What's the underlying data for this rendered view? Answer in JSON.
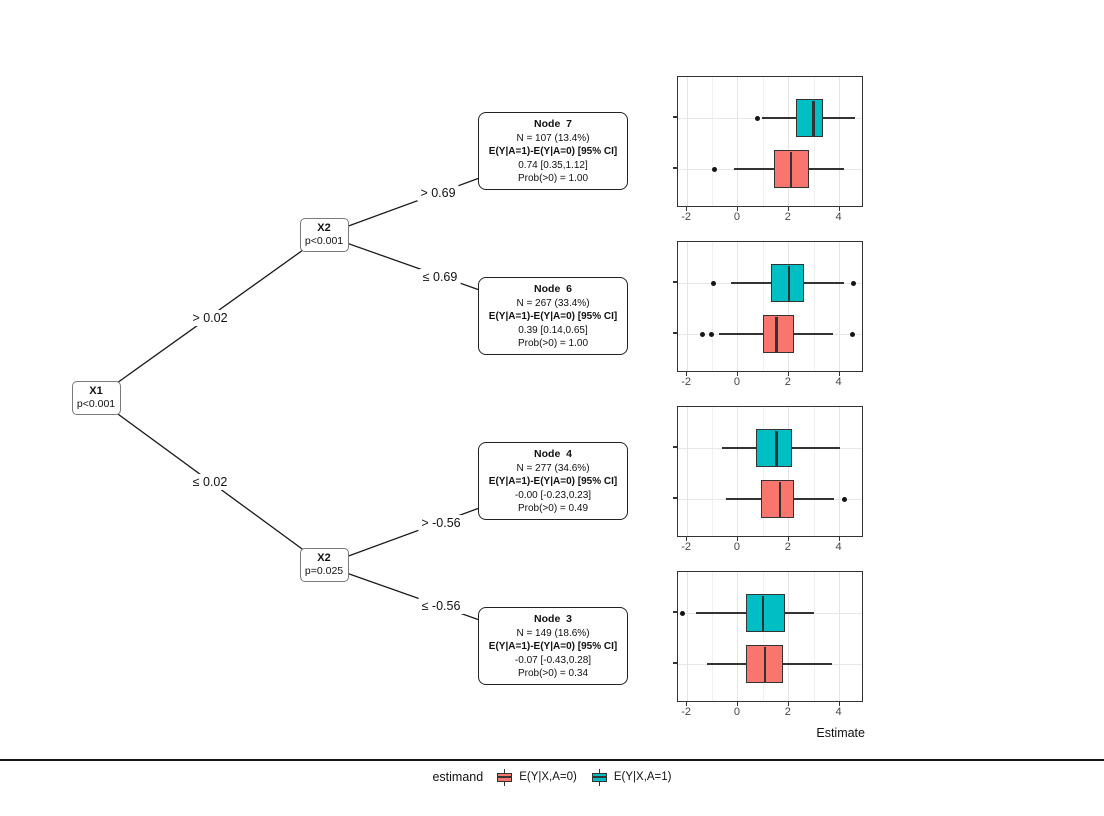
{
  "tree": {
    "nodes": [
      {
        "label": "X1",
        "pvalue": "p<0.001"
      },
      {
        "label": "X2",
        "pvalue": "p<0.001"
      },
      {
        "label": "X2",
        "pvalue": "p=0.025"
      }
    ],
    "edge_labels": [
      "> 0.02",
      "≤ 0.02",
      "> 0.69",
      "≤ 0.69",
      "> -0.56",
      "≤ -0.56"
    ],
    "terminal_nodes": [
      {
        "title": "Node  7",
        "n": "N = 107 (13.4%)",
        "ci_header": "E(Y|A=1)-E(Y|A=0) [95% CI]",
        "estimate": "0.74 [0.35,1.12]",
        "prob": "Prob(>0) = 1.00"
      },
      {
        "title": "Node  6",
        "n": "N = 267 (33.4%)",
        "ci_header": "E(Y|A=1)-E(Y|A=0) [95% CI]",
        "estimate": "0.39 [0.14,0.65]",
        "prob": "Prob(>0) = 1.00"
      },
      {
        "title": "Node  4",
        "n": "N = 277 (34.6%)",
        "ci_header": "E(Y|A=1)-E(Y|A=0) [95% CI]",
        "estimate": "-0.00 [-0.23,0.23]",
        "prob": "Prob(>0) = 0.49"
      },
      {
        "title": "Node  3",
        "n": "N = 149 (18.6%)",
        "ci_header": "E(Y|A=1)-E(Y|A=0) [95% CI]",
        "estimate": "-0.07 [-0.43,0.28]",
        "prob": "Prob(>0) = 0.34"
      }
    ]
  },
  "chart_data": {
    "type": "boxplot",
    "xlabel": "Estimate",
    "x_ticks": [
      -2,
      0,
      2,
      4
    ],
    "x_minor": [
      -1,
      1,
      3
    ],
    "x_domain": [
      -2.36,
      4.96
    ],
    "grid": "on",
    "legend": {
      "title": "estimand",
      "position": "bottom",
      "items": [
        {
          "label": "E(Y|X,A=0)",
          "color": "#F8766D"
        },
        {
          "label": "E(Y|X,A=1)",
          "color": "#00BFC4"
        }
      ]
    },
    "panels": [
      {
        "node": "Node 7",
        "boxes": [
          {
            "series": "E(Y|X,A=1)",
            "color": "#00BFC4",
            "whisker_lo": 0.95,
            "q1": 2.28,
            "median": 2.98,
            "q3": 3.33,
            "whisker_hi": 4.6,
            "outliers": [
              0.78
            ]
          },
          {
            "series": "E(Y|X,A=0)",
            "color": "#F8766D",
            "whisker_lo": -0.15,
            "q1": 1.43,
            "median": 2.09,
            "q3": 2.81,
            "whisker_hi": 4.16,
            "outliers": [
              -0.93
            ]
          }
        ]
      },
      {
        "node": "Node 6",
        "boxes": [
          {
            "series": "E(Y|X,A=1)",
            "color": "#00BFC4",
            "whisker_lo": -0.28,
            "q1": 1.3,
            "median": 2.0,
            "q3": 2.59,
            "whisker_hi": 4.19,
            "outliers": [
              -0.96,
              4.55
            ]
          },
          {
            "series": "E(Y|X,A=0)",
            "color": "#F8766D",
            "whisker_lo": -0.76,
            "q1": 1.0,
            "median": 1.51,
            "q3": 2.19,
            "whisker_hi": 3.75,
            "outliers": [
              -1.4,
              -1.06,
              4.49
            ]
          }
        ]
      },
      {
        "node": "Node 4",
        "boxes": [
          {
            "series": "E(Y|X,A=1)",
            "color": "#00BFC4",
            "whisker_lo": -0.64,
            "q1": 0.71,
            "median": 1.52,
            "q3": 2.13,
            "whisker_hi": 4.02,
            "outliers": []
          },
          {
            "series": "E(Y|X,A=0)",
            "color": "#F8766D",
            "whisker_lo": -0.47,
            "q1": 0.91,
            "median": 1.65,
            "q3": 2.19,
            "whisker_hi": 3.79,
            "outliers": [
              4.21
            ]
          }
        ]
      },
      {
        "node": "Node 3",
        "boxes": [
          {
            "series": "E(Y|X,A=1)",
            "color": "#00BFC4",
            "whisker_lo": -1.64,
            "q1": 0.31,
            "median": 0.98,
            "q3": 1.86,
            "whisker_hi": 2.98,
            "outliers": [
              -2.2
            ]
          },
          {
            "series": "E(Y|X,A=0)",
            "color": "#F8766D",
            "whisker_lo": -1.23,
            "q1": 0.31,
            "median": 1.06,
            "q3": 1.76,
            "whisker_hi": 3.7,
            "outliers": []
          }
        ]
      }
    ]
  }
}
